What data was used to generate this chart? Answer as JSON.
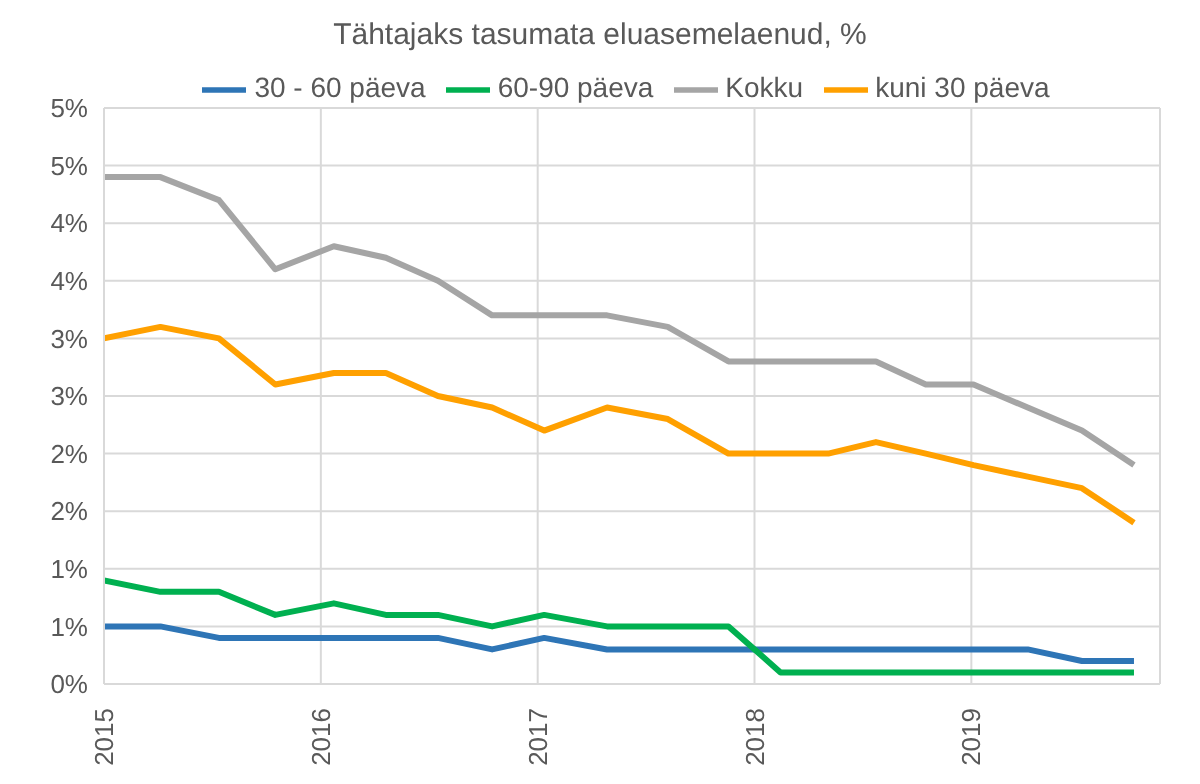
{
  "chart_data": {
    "type": "line",
    "title": "Tähtajaks tasumata eluasemelaenud, %",
    "x": [
      2015,
      2015.26,
      2015.53,
      2015.79,
      2016.06,
      2016.3,
      2016.54,
      2016.79,
      2017.03,
      2017.32,
      2017.6,
      2017.88,
      2018.12,
      2018.34,
      2018.56,
      2018.79,
      2019.01,
      2019.26,
      2019.51,
      2019.75
    ],
    "series": [
      {
        "name": "Kokku",
        "color": "#a5a5a5",
        "values": [
          4.4,
          4.4,
          4.2,
          3.6,
          3.8,
          3.7,
          3.5,
          3.2,
          3.2,
          3.2,
          3.1,
          2.8,
          2.8,
          2.8,
          2.8,
          2.6,
          2.6,
          2.4,
          2.2,
          1.9
        ]
      },
      {
        "name": "kuni 30 päeva",
        "color": "#ffa000",
        "values": [
          3.0,
          3.1,
          3.0,
          2.6,
          2.7,
          2.7,
          2.5,
          2.4,
          2.2,
          2.4,
          2.3,
          2.0,
          2.0,
          2.0,
          2.1,
          2.0,
          1.9,
          1.8,
          1.7,
          1.4
        ]
      },
      {
        "name": "30 - 60 päeva",
        "color": "#2e75b6",
        "values": [
          0.5,
          0.5,
          0.4,
          0.4,
          0.4,
          0.4,
          0.4,
          0.3,
          0.4,
          0.3,
          0.3,
          0.3,
          0.3,
          0.3,
          0.3,
          0.3,
          0.3,
          0.3,
          0.2,
          0.2
        ]
      },
      {
        "name": "60-90 päeva",
        "color": "#00b050",
        "values": [
          0.9,
          0.8,
          0.8,
          0.6,
          0.7,
          0.6,
          0.6,
          0.5,
          0.6,
          0.5,
          0.5,
          0.5,
          0.1,
          0.1,
          0.1,
          0.1,
          0.1,
          0.1,
          0.1,
          0.1
        ]
      }
    ],
    "xlim": [
      2015,
      2019.87
    ],
    "xticks": [
      2015,
      2016,
      2017,
      2018,
      2019
    ],
    "ylim": [
      0,
      5
    ],
    "yticks": [
      {
        "value": 0,
        "label": "0%"
      },
      {
        "value": 0.5,
        "label": "1%"
      },
      {
        "value": 1,
        "label": "1%"
      },
      {
        "value": 1.5,
        "label": "2%"
      },
      {
        "value": 2,
        "label": "2%"
      },
      {
        "value": 2.5,
        "label": "3%"
      },
      {
        "value": 3,
        "label": "3%"
      },
      {
        "value": 3.5,
        "label": "4%"
      },
      {
        "value": 4,
        "label": "4%"
      },
      {
        "value": 4.5,
        "label": "5%"
      },
      {
        "value": 5,
        "label": "5%"
      }
    ],
    "grid": true,
    "legend": "top",
    "marker": "none",
    "line_style": "solid"
  }
}
